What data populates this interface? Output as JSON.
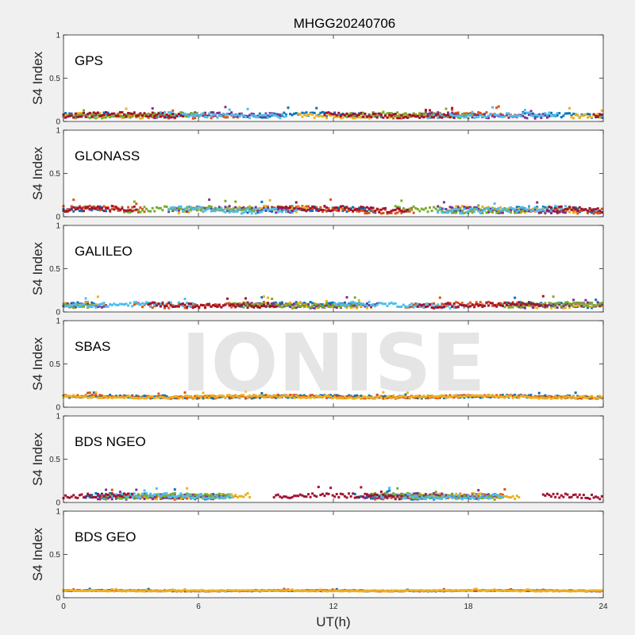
{
  "title": "MHGG20240706",
  "watermark": "IONISE",
  "colors": [
    "#0072BD",
    "#D95319",
    "#EDB120",
    "#7E2F8E",
    "#77AC30",
    "#4DBEEE",
    "#A2142F"
  ],
  "chart_data": {
    "type": "scatter",
    "xlabel": "UT(h)",
    "xlim": [
      0,
      24
    ],
    "x_ticks": [
      "0",
      "6",
      "12",
      "18",
      "24"
    ],
    "ylim": [
      0,
      1
    ],
    "y_ticks": [
      "0",
      "0.5",
      "1"
    ],
    "ylabel": "S4 Index",
    "panels": [
      {
        "label": "GPS",
        "baseline": 0.07,
        "spread": 0.05,
        "series_count": 7
      },
      {
        "label": "GLONASS",
        "baseline": 0.08,
        "spread": 0.06,
        "series_count": 7
      },
      {
        "label": "GALILEO",
        "baseline": 0.08,
        "spread": 0.05,
        "series_count": 7
      },
      {
        "label": "SBAS",
        "baseline": 0.12,
        "spread": 0.03,
        "series_count": 3
      },
      {
        "label": "BDS NGEO",
        "baseline": 0.07,
        "spread": 0.05,
        "series_count": 7
      },
      {
        "label": "BDS GEO",
        "baseline": 0.08,
        "spread": 0.01,
        "series_count": 3
      }
    ]
  }
}
